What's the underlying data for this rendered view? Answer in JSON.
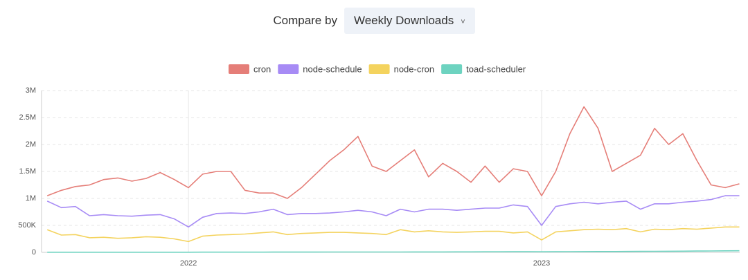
{
  "controls": {
    "label": "Compare by",
    "selected": "Weekly Downloads"
  },
  "chart_data": {
    "type": "line",
    "x": [
      2021.6,
      2021.64,
      2021.68,
      2021.72,
      2021.76,
      2021.8,
      2021.84,
      2021.88,
      2021.92,
      2021.96,
      2022.0,
      2022.04,
      2022.08,
      2022.12,
      2022.16,
      2022.2,
      2022.24,
      2022.28,
      2022.32,
      2022.36,
      2022.4,
      2022.44,
      2022.48,
      2022.52,
      2022.56,
      2022.6,
      2022.64,
      2022.68,
      2022.72,
      2022.76,
      2022.8,
      2022.84,
      2022.88,
      2022.92,
      2022.96,
      2023.0,
      2023.04,
      2023.08,
      2023.12,
      2023.16,
      2023.2,
      2023.24,
      2023.28,
      2023.32,
      2023.36,
      2023.4,
      2023.44,
      2023.48,
      2023.52,
      2023.56
    ],
    "series": [
      {
        "name": "cron",
        "color": "#e57e78",
        "values": [
          1050000,
          1150000,
          1220000,
          1250000,
          1350000,
          1380000,
          1320000,
          1370000,
          1480000,
          1350000,
          1200000,
          1450000,
          1500000,
          1500000,
          1150000,
          1100000,
          1100000,
          1000000,
          1200000,
          1450000,
          1700000,
          1900000,
          2150000,
          1600000,
          1500000,
          1700000,
          1900000,
          1400000,
          1650000,
          1500000,
          1300000,
          1600000,
          1300000,
          1550000,
          1500000,
          1050000,
          1500000,
          2200000,
          2700000,
          2300000,
          1500000,
          1650000,
          1800000,
          2300000,
          2000000,
          2200000,
          1700000,
          1250000,
          1200000,
          1270000
        ]
      },
      {
        "name": "node-schedule",
        "color": "#a78bf5",
        "values": [
          950000,
          830000,
          850000,
          680000,
          700000,
          680000,
          670000,
          690000,
          700000,
          620000,
          470000,
          650000,
          720000,
          730000,
          720000,
          750000,
          800000,
          700000,
          720000,
          720000,
          730000,
          750000,
          780000,
          750000,
          680000,
          800000,
          750000,
          800000,
          800000,
          780000,
          800000,
          820000,
          820000,
          880000,
          850000,
          500000,
          850000,
          900000,
          930000,
          900000,
          930000,
          950000,
          800000,
          900000,
          900000,
          930000,
          950000,
          980000,
          1050000,
          1050000
        ]
      },
      {
        "name": "node-cron",
        "color": "#f4d35e",
        "values": [
          420000,
          320000,
          330000,
          270000,
          280000,
          260000,
          270000,
          290000,
          280000,
          250000,
          200000,
          300000,
          320000,
          330000,
          340000,
          360000,
          380000,
          330000,
          350000,
          360000,
          370000,
          370000,
          360000,
          350000,
          330000,
          420000,
          380000,
          400000,
          380000,
          370000,
          380000,
          390000,
          390000,
          360000,
          380000,
          230000,
          380000,
          400000,
          420000,
          430000,
          420000,
          440000,
          380000,
          430000,
          420000,
          440000,
          430000,
          450000,
          470000,
          470000
        ]
      },
      {
        "name": "toad-scheduler",
        "color": "#6dd3c0",
        "values": [
          2000,
          2000,
          2000,
          2000,
          3000,
          3000,
          3000,
          3000,
          3000,
          3000,
          3000,
          4000,
          4000,
          4000,
          4000,
          4000,
          5000,
          5000,
          5000,
          5000,
          6000,
          6000,
          6000,
          7000,
          7000,
          7000,
          8000,
          8000,
          8000,
          9000,
          9000,
          10000,
          10000,
          11000,
          11000,
          10000,
          12000,
          13000,
          14000,
          15000,
          16000,
          17000,
          18000,
          19000,
          20000,
          22000,
          24000,
          26000,
          28000,
          30000
        ]
      }
    ],
    "xlim": [
      2021.584,
      2023.561
    ],
    "xticks": [
      2022,
      2023
    ],
    "ylim": [
      0,
      3000000
    ],
    "yticks": [
      0,
      {
        "value": 500000,
        "label": "500K"
      },
      {
        "value": 1000000,
        "label": "1M"
      },
      {
        "value": 1500000,
        "label": "1.5M"
      },
      {
        "value": 2000000,
        "label": "2M"
      },
      {
        "value": 2500000,
        "label": "2.5M"
      },
      {
        "value": 3000000,
        "label": "3M"
      }
    ],
    "grid": true
  }
}
